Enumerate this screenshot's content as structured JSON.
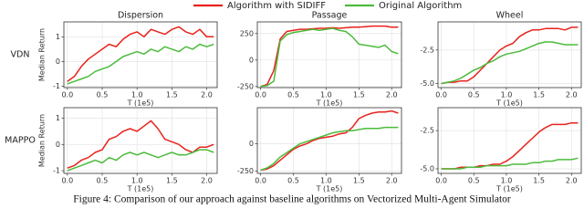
{
  "legend": [
    {
      "name": "Algorithm with SIDIFF",
      "color": "#e8221c"
    },
    {
      "name": "Original Algorithm",
      "color": "#4cbb3c"
    }
  ],
  "caption": "Figure 4: Comparison of our approach against baseline algorithms on Vectorized Multi-Agent Simulator",
  "chart_data": [
    {
      "type": "line",
      "title": "Dispersion",
      "row_label": "VDN",
      "ylabel": "Median Return",
      "xlabel": "T (1e5)",
      "grid": true,
      "x": [
        0,
        0.1,
        0.2,
        0.3,
        0.4,
        0.5,
        0.6,
        0.7,
        0.8,
        0.9,
        1.0,
        1.1,
        1.2,
        1.3,
        1.4,
        1.5,
        1.6,
        1.7,
        1.8,
        1.9,
        2.0,
        2.1
      ],
      "xlim": [
        -0.05,
        2.15
      ],
      "xticks": [
        {
          "value": 0,
          "label": "0.0"
        },
        0.5,
        {
          "value": 1,
          "label": "1.0"
        },
        1.5,
        {
          "value": 2,
          "label": "2.0"
        }
      ],
      "ylim": [
        -1.05,
        1.6
      ],
      "yticks": [
        -1,
        0,
        1
      ],
      "series": [
        {
          "color": "#e8221c",
          "values": [
            -0.8,
            -0.6,
            -0.2,
            0.1,
            0.3,
            0.5,
            0.7,
            0.6,
            0.9,
            1.1,
            1.2,
            1.0,
            1.3,
            1.2,
            1.1,
            1.3,
            1.4,
            1.2,
            1.1,
            1.3,
            1.0,
            1.0
          ]
        },
        {
          "color": "#4cbb3c",
          "values": [
            -0.9,
            -0.8,
            -0.7,
            -0.6,
            -0.4,
            -0.3,
            -0.2,
            0.0,
            0.2,
            0.3,
            0.4,
            0.3,
            0.5,
            0.4,
            0.6,
            0.5,
            0.4,
            0.6,
            0.5,
            0.7,
            0.6,
            0.7
          ]
        }
      ]
    },
    {
      "type": "line",
      "title": "Passage",
      "xlabel": "T (1e5)",
      "grid": true,
      "x": [
        0,
        0.1,
        0.2,
        0.3,
        0.4,
        0.5,
        0.6,
        0.7,
        0.8,
        0.9,
        1.0,
        1.1,
        1.2,
        1.3,
        1.4,
        1.5,
        1.6,
        1.7,
        1.8,
        1.9,
        2.0,
        2.1
      ],
      "xlim": [
        -0.05,
        2.15
      ],
      "xticks": [
        {
          "value": 0,
          "label": "0.0"
        },
        0.5,
        {
          "value": 1,
          "label": "1.0"
        },
        1.5,
        {
          "value": 2,
          "label": "2.0"
        }
      ],
      "ylim": [
        -260,
        360
      ],
      "yticks": [
        -250,
        0,
        250
      ],
      "series": [
        {
          "color": "#e8221c",
          "values": [
            -250,
            -230,
            -100,
            200,
            270,
            280,
            290,
            290,
            295,
            300,
            300,
            305,
            300,
            305,
            310,
            310,
            315,
            320,
            320,
            320,
            310,
            310
          ]
        },
        {
          "color": "#4cbb3c",
          "values": [
            -250,
            -240,
            -200,
            180,
            240,
            260,
            270,
            280,
            290,
            280,
            290,
            300,
            280,
            270,
            220,
            150,
            140,
            130,
            120,
            140,
            80,
            60
          ]
        }
      ]
    },
    {
      "type": "line",
      "title": "Wheel",
      "xlabel": "T (1e5)",
      "grid": true,
      "x": [
        0,
        0.1,
        0.2,
        0.3,
        0.4,
        0.5,
        0.6,
        0.7,
        0.8,
        0.9,
        1.0,
        1.1,
        1.2,
        1.3,
        1.4,
        1.5,
        1.6,
        1.7,
        1.8,
        1.9,
        2.0,
        2.1
      ],
      "xlim": [
        -0.05,
        2.15
      ],
      "xticks": [
        {
          "value": 0,
          "label": "0.0"
        },
        0.5,
        {
          "value": 1,
          "label": "1.0"
        },
        1.5,
        {
          "value": 2,
          "label": "2.0"
        }
      ],
      "ylim": [
        -5.3,
        -0.4
      ],
      "yticks": [
        {
          "value": -5,
          "label": "-5.0"
        },
        -2.5
      ],
      "series": [
        {
          "color": "#e8221c",
          "values": [
            -5,
            -4.9,
            -4.9,
            -4.8,
            -4.8,
            -4.5,
            -4.0,
            -3.5,
            -3.0,
            -2.5,
            -2.2,
            -2.0,
            -1.5,
            -1.2,
            -1.0,
            -1.0,
            -0.9,
            -0.9,
            -0.9,
            -1.0,
            -0.8,
            -0.8
          ]
        },
        {
          "color": "#4cbb3c",
          "values": [
            -5,
            -4.9,
            -4.8,
            -4.6,
            -4.3,
            -4.0,
            -3.8,
            -3.5,
            -3.3,
            -3.0,
            -2.8,
            -2.7,
            -2.6,
            -2.4,
            -2.2,
            -2.0,
            -1.9,
            -1.9,
            -2.0,
            -2.1,
            -2.1,
            -2.1
          ]
        }
      ]
    },
    {
      "type": "line",
      "row_label": "MAPPO",
      "ylabel": "Median Return",
      "xlabel": "T (1e5)",
      "grid": true,
      "x": [
        0,
        0.1,
        0.2,
        0.3,
        0.4,
        0.5,
        0.6,
        0.7,
        0.8,
        0.9,
        1.0,
        1.1,
        1.2,
        1.3,
        1.4,
        1.5,
        1.6,
        1.7,
        1.8,
        1.9,
        2.0,
        2.1
      ],
      "xlim": [
        -0.05,
        2.15
      ],
      "xticks": [
        {
          "value": 0,
          "label": "0.0"
        },
        0.5,
        {
          "value": 1,
          "label": "1.0"
        },
        1.5,
        {
          "value": 2,
          "label": "2.0"
        }
      ],
      "ylim": [
        -1.1,
        1.4
      ],
      "yticks": [
        -1,
        0,
        1
      ],
      "series": [
        {
          "color": "#e8221c",
          "values": [
            -0.9,
            -0.8,
            -0.6,
            -0.5,
            -0.3,
            -0.2,
            0.2,
            0.3,
            0.5,
            0.6,
            0.5,
            0.7,
            0.9,
            0.6,
            0.2,
            0.1,
            0.0,
            -0.2,
            -0.3,
            -0.1,
            -0.1,
            0.0
          ]
        },
        {
          "color": "#4cbb3c",
          "values": [
            -1,
            -0.9,
            -0.8,
            -0.7,
            -0.6,
            -0.7,
            -0.5,
            -0.6,
            -0.4,
            -0.3,
            -0.4,
            -0.3,
            -0.4,
            -0.5,
            -0.4,
            -0.3,
            -0.4,
            -0.4,
            -0.3,
            -0.2,
            -0.2,
            -0.3
          ]
        }
      ]
    },
    {
      "type": "line",
      "xlabel": "T (1e5)",
      "grid": true,
      "x": [
        0,
        0.1,
        0.2,
        0.3,
        0.4,
        0.5,
        0.6,
        0.7,
        0.8,
        0.9,
        1.0,
        1.1,
        1.2,
        1.3,
        1.4,
        1.5,
        1.6,
        1.7,
        1.8,
        1.9,
        2.0,
        2.1
      ],
      "xlim": [
        -0.05,
        2.15
      ],
      "xticks": [
        {
          "value": 0,
          "label": "0.0"
        },
        0.5,
        {
          "value": 1,
          "label": "1.0"
        },
        1.5,
        {
          "value": 2,
          "label": "2.0"
        }
      ],
      "ylim": [
        -270,
        330
      ],
      "yticks": [
        -250,
        0
      ],
      "series": [
        {
          "color": "#e8221c",
          "values": [
            -240,
            -230,
            -200,
            -150,
            -100,
            -50,
            -20,
            0,
            30,
            50,
            60,
            70,
            90,
            100,
            150,
            230,
            260,
            280,
            290,
            290,
            300,
            280
          ]
        },
        {
          "color": "#4cbb3c",
          "values": [
            -240,
            -220,
            -180,
            -120,
            -80,
            -40,
            0,
            20,
            40,
            60,
            80,
            100,
            110,
            120,
            120,
            130,
            140,
            140,
            140,
            150,
            150,
            150
          ]
        }
      ]
    },
    {
      "type": "line",
      "xlabel": "T (1e5)",
      "grid": true,
      "x": [
        0,
        0.1,
        0.2,
        0.3,
        0.4,
        0.5,
        0.6,
        0.7,
        0.8,
        0.9,
        1.0,
        1.1,
        1.2,
        1.3,
        1.4,
        1.5,
        1.6,
        1.7,
        1.8,
        1.9,
        2.0,
        2.1
      ],
      "xlim": [
        -0.05,
        2.15
      ],
      "xticks": [
        {
          "value": 0,
          "label": "0.0"
        },
        0.5,
        {
          "value": 1,
          "label": "1.0"
        },
        1.5,
        {
          "value": 2,
          "label": "2.0"
        }
      ],
      "ylim": [
        -5.3,
        -1.0
      ],
      "yticks": [
        {
          "value": -5,
          "label": "-5.0"
        },
        -2.5
      ],
      "series": [
        {
          "color": "#e8221c",
          "values": [
            -5.0,
            -5.0,
            -5.0,
            -4.9,
            -4.9,
            -4.9,
            -4.8,
            -4.8,
            -4.7,
            -4.7,
            -4.5,
            -4.2,
            -3.8,
            -3.4,
            -3.0,
            -2.6,
            -2.3,
            -2.1,
            -2.1,
            -2.1,
            -2.0,
            -2.0
          ]
        },
        {
          "color": "#4cbb3c",
          "values": [
            -5,
            -5,
            -5,
            -5,
            -4.9,
            -4.9,
            -4.9,
            -4.8,
            -4.8,
            -4.8,
            -4.8,
            -4.7,
            -4.7,
            -4.7,
            -4.6,
            -4.6,
            -4.5,
            -4.5,
            -4.4,
            -4.4,
            -4.4,
            -4.3
          ]
        }
      ]
    }
  ]
}
